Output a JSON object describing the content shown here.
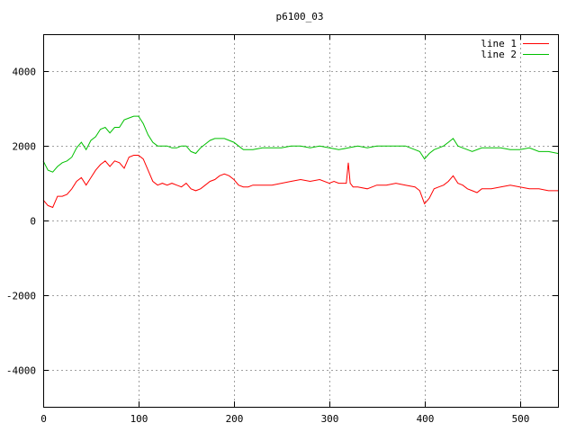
{
  "chart_data": {
    "type": "line",
    "title": "p6100_03",
    "xlabel": "",
    "ylabel": "",
    "xlim": [
      0,
      540
    ],
    "ylim": [
      -5000,
      5000
    ],
    "x_ticks": [
      "0",
      "100",
      "200",
      "300",
      "400",
      "500"
    ],
    "y_ticks": [
      "-4000",
      "-2000",
      "0",
      "2000",
      "4000"
    ],
    "grid": true,
    "legend_position": "top-right",
    "series": [
      {
        "name": "line 1",
        "color": "#ff0000",
        "x": [
          0,
          5,
          10,
          15,
          20,
          25,
          30,
          35,
          40,
          45,
          50,
          55,
          60,
          65,
          70,
          75,
          80,
          85,
          90,
          95,
          100,
          105,
          110,
          115,
          120,
          125,
          130,
          135,
          140,
          145,
          150,
          155,
          160,
          165,
          170,
          175,
          180,
          185,
          190,
          195,
          200,
          205,
          210,
          215,
          220,
          230,
          240,
          250,
          260,
          270,
          280,
          290,
          300,
          305,
          310,
          315,
          318,
          320,
          322,
          325,
          330,
          340,
          350,
          360,
          370,
          380,
          390,
          395,
          400,
          405,
          410,
          415,
          420,
          425,
          430,
          435,
          440,
          445,
          450,
          455,
          460,
          470,
          480,
          490,
          500,
          510,
          520,
          530,
          540
        ],
        "y": [
          550,
          400,
          350,
          650,
          650,
          700,
          850,
          1050,
          1150,
          950,
          1150,
          1350,
          1500,
          1600,
          1450,
          1600,
          1550,
          1400,
          1700,
          1750,
          1750,
          1650,
          1350,
          1050,
          950,
          1000,
          950,
          1000,
          950,
          900,
          1000,
          850,
          800,
          850,
          950,
          1050,
          1100,
          1200,
          1250,
          1200,
          1100,
          950,
          900,
          900,
          950,
          950,
          950,
          1000,
          1050,
          1100,
          1050,
          1100,
          1000,
          1050,
          1000,
          1000,
          1000,
          1550,
          1000,
          900,
          900,
          850,
          950,
          950,
          1000,
          950,
          900,
          800,
          450,
          600,
          850,
          900,
          950,
          1050,
          1200,
          1000,
          950,
          850,
          800,
          750,
          850,
          850,
          900,
          950,
          900,
          850,
          850,
          800,
          800
        ]
      },
      {
        "name": "line 2",
        "color": "#00c000",
        "x": [
          0,
          5,
          10,
          15,
          20,
          25,
          30,
          35,
          40,
          45,
          50,
          55,
          60,
          65,
          70,
          75,
          80,
          85,
          90,
          95,
          100,
          105,
          110,
          115,
          120,
          125,
          130,
          135,
          140,
          145,
          150,
          155,
          160,
          165,
          170,
          175,
          180,
          185,
          190,
          195,
          200,
          205,
          210,
          220,
          230,
          240,
          250,
          260,
          270,
          280,
          290,
          300,
          310,
          320,
          330,
          340,
          350,
          360,
          370,
          380,
          390,
          395,
          400,
          405,
          410,
          415,
          420,
          425,
          430,
          435,
          440,
          445,
          450,
          460,
          470,
          480,
          490,
          500,
          510,
          520,
          530,
          540
        ],
        "y": [
          1600,
          1350,
          1300,
          1450,
          1550,
          1600,
          1700,
          1950,
          2100,
          1900,
          2150,
          2250,
          2450,
          2500,
          2350,
          2500,
          2500,
          2700,
          2750,
          2800,
          2800,
          2600,
          2300,
          2100,
          2000,
          2000,
          2000,
          1950,
          1950,
          2000,
          2000,
          1850,
          1800,
          1950,
          2050,
          2150,
          2200,
          2200,
          2200,
          2150,
          2100,
          2000,
          1900,
          1900,
          1950,
          1950,
          1950,
          2000,
          2000,
          1950,
          2000,
          1950,
          1900,
          1950,
          2000,
          1950,
          2000,
          2000,
          2000,
          2000,
          1900,
          1850,
          1650,
          1800,
          1900,
          1950,
          2000,
          2100,
          2200,
          2000,
          1950,
          1900,
          1850,
          1950,
          1950,
          1950,
          1900,
          1900,
          1950,
          1850,
          1850,
          1800
        ]
      }
    ]
  }
}
